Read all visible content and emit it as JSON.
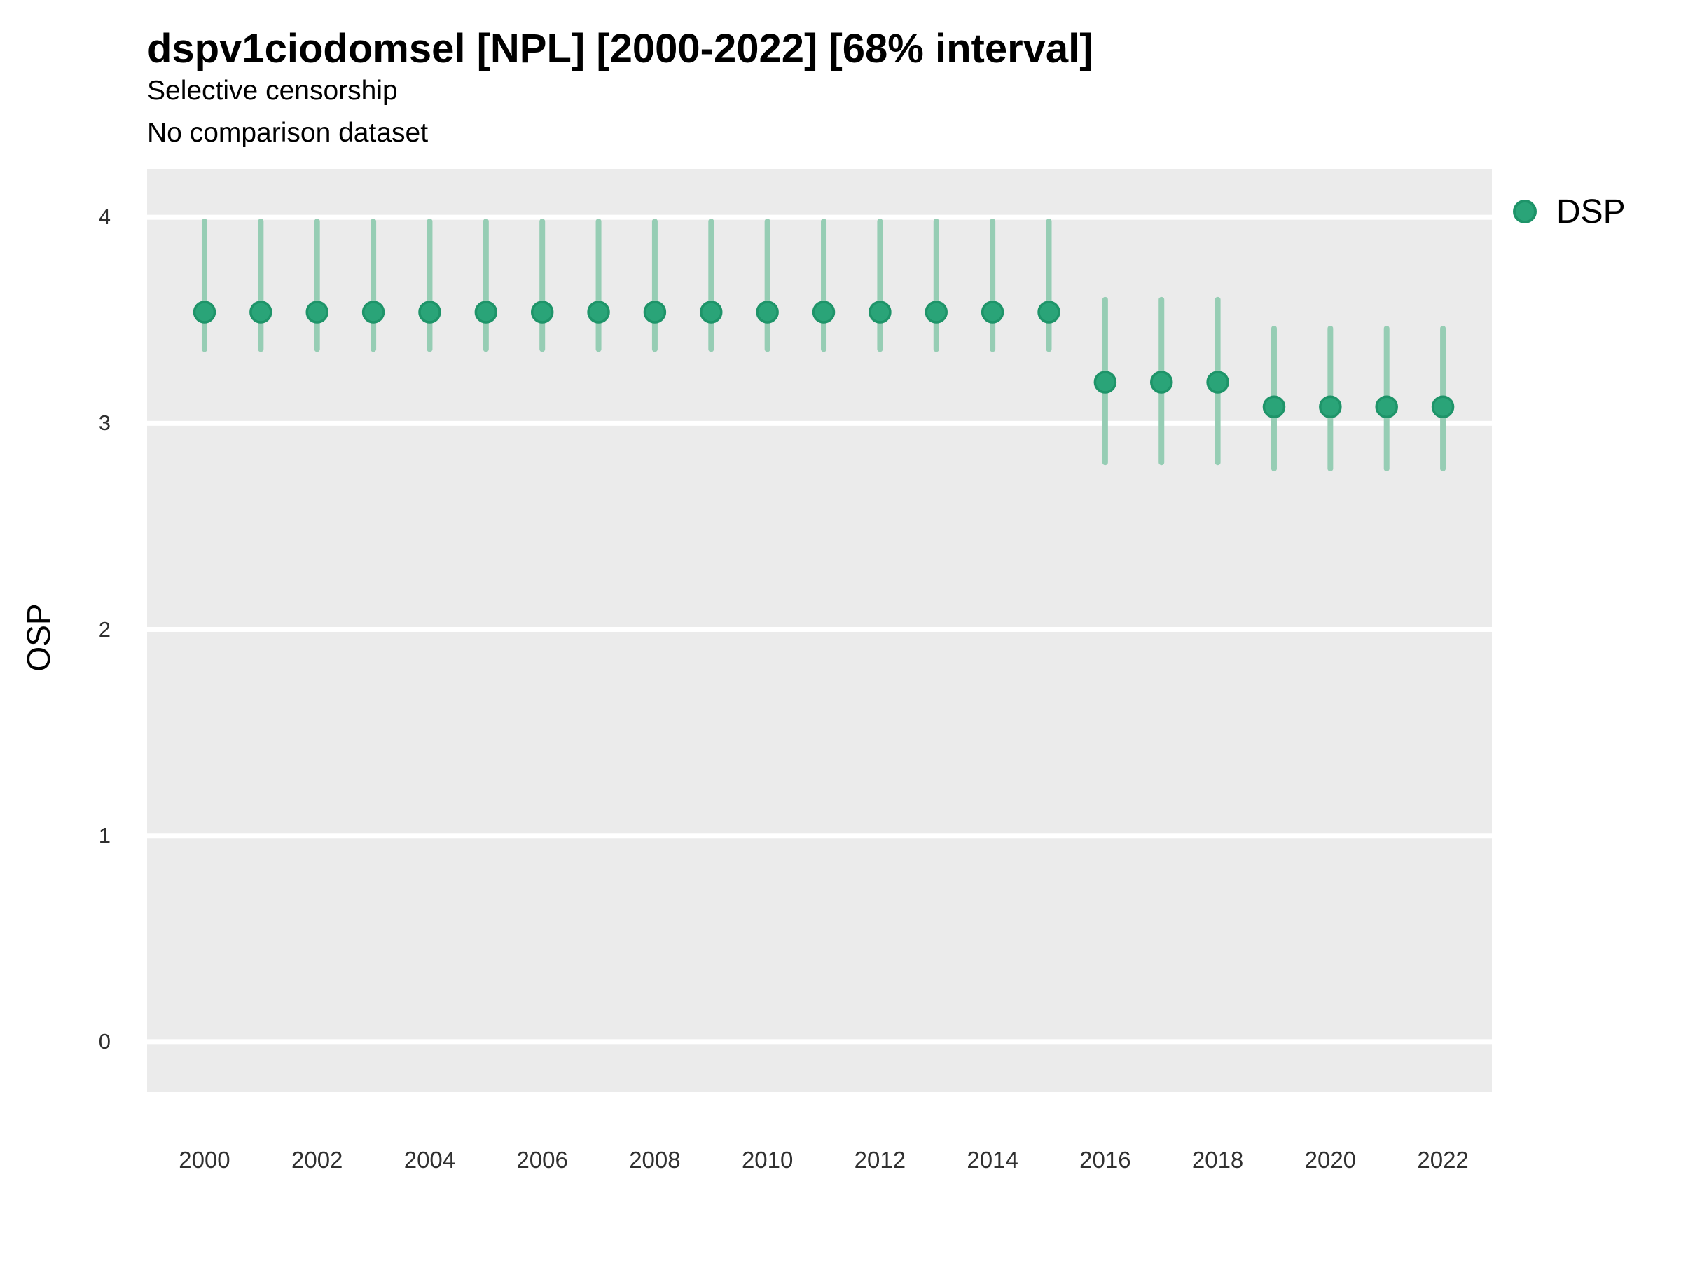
{
  "header": {
    "title": "dspv1ciodomsel [NPL] [2000-2022] [68% interval]",
    "subtitle_line1": "Selective censorship",
    "subtitle_line2": "No comparison dataset"
  },
  "legend": {
    "label": "DSP"
  },
  "axes": {
    "y_title": "OSP",
    "y_tick_labels": [
      "0",
      "1",
      "2",
      "3",
      "4"
    ],
    "y_tick_values": [
      0,
      1,
      2,
      3,
      4
    ],
    "x_tick_labels": [
      "2000",
      "2002",
      "2004",
      "2006",
      "2008",
      "2010",
      "2012",
      "2014",
      "2016",
      "2018",
      "2020",
      "2022"
    ],
    "x_tick_values": [
      2000,
      2002,
      2004,
      2006,
      2008,
      2010,
      2012,
      2014,
      2016,
      2018,
      2020,
      2022
    ]
  },
  "colors": {
    "panel_bg": "#ebebeb",
    "gridline": "#ffffff",
    "range_line": "#96cdb4",
    "point_fill": "#2aa478",
    "point_stroke": "#1e9469",
    "tick_text": "#303030",
    "text": "#000000"
  },
  "chart_data": {
    "type": "pointrange",
    "title": "dspv1ciodomsel [NPL] [2000-2022] [68% interval]",
    "subtitle": [
      "Selective censorship",
      "No comparison dataset"
    ],
    "interval": "68%",
    "xlabel": "",
    "ylabel": "OSP",
    "legend_position": "right",
    "grid": "horizontal-major-only",
    "xlim": [
      1998.98,
      2022.87
    ],
    "ylim": [
      -0.245,
      4.235
    ],
    "x": [
      2000,
      2001,
      2002,
      2003,
      2004,
      2005,
      2006,
      2007,
      2008,
      2009,
      2010,
      2011,
      2012,
      2013,
      2014,
      2015,
      2016,
      2017,
      2018,
      2019,
      2020,
      2021,
      2022
    ],
    "series": [
      {
        "name": "DSP",
        "points": [
          {
            "year": 2000,
            "est": 3.54,
            "lo": 3.36,
            "hi": 3.98
          },
          {
            "year": 2001,
            "est": 3.54,
            "lo": 3.36,
            "hi": 3.98
          },
          {
            "year": 2002,
            "est": 3.54,
            "lo": 3.36,
            "hi": 3.98
          },
          {
            "year": 2003,
            "est": 3.54,
            "lo": 3.36,
            "hi": 3.98
          },
          {
            "year": 2004,
            "est": 3.54,
            "lo": 3.36,
            "hi": 3.98
          },
          {
            "year": 2005,
            "est": 3.54,
            "lo": 3.36,
            "hi": 3.98
          },
          {
            "year": 2006,
            "est": 3.54,
            "lo": 3.36,
            "hi": 3.98
          },
          {
            "year": 2007,
            "est": 3.54,
            "lo": 3.36,
            "hi": 3.98
          },
          {
            "year": 2008,
            "est": 3.54,
            "lo": 3.36,
            "hi": 3.98
          },
          {
            "year": 2009,
            "est": 3.54,
            "lo": 3.36,
            "hi": 3.98
          },
          {
            "year": 2010,
            "est": 3.54,
            "lo": 3.36,
            "hi": 3.98
          },
          {
            "year": 2011,
            "est": 3.54,
            "lo": 3.36,
            "hi": 3.98
          },
          {
            "year": 2012,
            "est": 3.54,
            "lo": 3.36,
            "hi": 3.98
          },
          {
            "year": 2013,
            "est": 3.54,
            "lo": 3.36,
            "hi": 3.98
          },
          {
            "year": 2014,
            "est": 3.54,
            "lo": 3.36,
            "hi": 3.98
          },
          {
            "year": 2015,
            "est": 3.54,
            "lo": 3.36,
            "hi": 3.98
          },
          {
            "year": 2016,
            "est": 3.2,
            "lo": 2.81,
            "hi": 3.6
          },
          {
            "year": 2017,
            "est": 3.2,
            "lo": 2.81,
            "hi": 3.6
          },
          {
            "year": 2018,
            "est": 3.2,
            "lo": 2.81,
            "hi": 3.6
          },
          {
            "year": 2019,
            "est": 3.08,
            "lo": 2.78,
            "hi": 3.46
          },
          {
            "year": 2020,
            "est": 3.08,
            "lo": 2.78,
            "hi": 3.46
          },
          {
            "year": 2021,
            "est": 3.08,
            "lo": 2.78,
            "hi": 3.46
          },
          {
            "year": 2022,
            "est": 3.08,
            "lo": 2.78,
            "hi": 3.46
          }
        ]
      }
    ]
  }
}
